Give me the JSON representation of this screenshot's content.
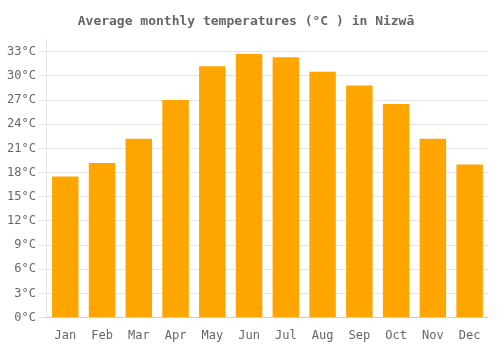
{
  "chart_data": {
    "type": "bar",
    "title": "Average monthly temperatures (°C ) in Nizwā",
    "categories": [
      "Jan",
      "Feb",
      "Mar",
      "Apr",
      "May",
      "Jun",
      "Jul",
      "Aug",
      "Sep",
      "Oct",
      "Nov",
      "Dec"
    ],
    "values": [
      17.5,
      19.2,
      22.2,
      27.0,
      31.2,
      32.7,
      32.3,
      30.5,
      28.8,
      26.5,
      22.2,
      19.0
    ],
    "color": "#FFA500",
    "ylim": [
      0,
      34.5
    ],
    "yticks": [
      {
        "value": 0,
        "label": "0°C"
      },
      {
        "value": 3,
        "label": "3°C"
      },
      {
        "value": 6,
        "label": "6°C"
      },
      {
        "value": 9,
        "label": "9°C"
      },
      {
        "value": 12,
        "label": "12°C"
      },
      {
        "value": 15,
        "label": "15°C"
      },
      {
        "value": 18,
        "label": "18°C"
      },
      {
        "value": 21,
        "label": "21°C"
      },
      {
        "value": 24,
        "label": "24°C"
      },
      {
        "value": 27,
        "label": "27°C"
      },
      {
        "value": 30,
        "label": "30°C"
      },
      {
        "value": 33,
        "label": "33°C"
      }
    ],
    "grid": true
  }
}
